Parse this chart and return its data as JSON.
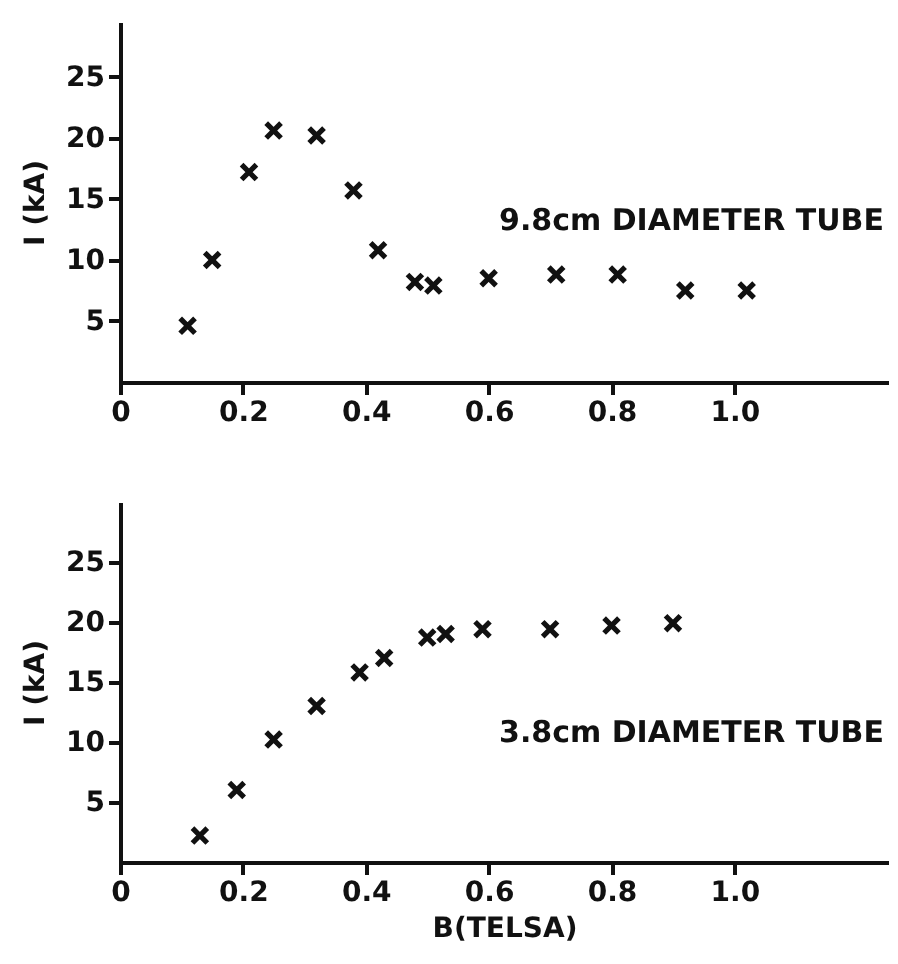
{
  "chart_data": [
    {
      "type": "scatter",
      "x": [
        0.11,
        0.15,
        0.21,
        0.25,
        0.32,
        0.38,
        0.42,
        0.48,
        0.51,
        0.6,
        0.71,
        0.81,
        0.92,
        1.02
      ],
      "values": [
        4.6,
        10,
        17.2,
        20.6,
        20.2,
        15.7,
        10.8,
        8.2,
        7.9,
        8.5,
        8.8,
        8.8,
        7.5,
        7.5
      ],
      "color": "#111111",
      "marker": "cross",
      "ylabel": "I (kA)",
      "xlim": [
        0,
        1.25
      ],
      "xticks": [
        0,
        0.2,
        0.4,
        0.6,
        0.8,
        {
          "value": 1,
          "label": "1.0"
        }
      ],
      "ylim": [
        0,
        29.5
      ],
      "yticks": [
        5,
        10,
        15,
        20,
        25
      ],
      "annotations": [
        "9.8cm DIAMETER TUBE"
      ]
    },
    {
      "type": "scatter",
      "x": [
        0.13,
        0.19,
        0.25,
        0.32,
        0.39,
        0.43,
        0.5,
        0.53,
        0.59,
        0.7,
        0.8,
        0.9
      ],
      "values": [
        2.2,
        6,
        10.2,
        13,
        15.8,
        17,
        18.7,
        19,
        19.4,
        19.4,
        19.7,
        19.9
      ],
      "color": "#111111",
      "marker": "cross",
      "xlabel": "B(TELSA)",
      "ylabel": "I (kA)",
      "xlim": [
        0,
        1.25
      ],
      "xticks": [
        0,
        0.2,
        0.4,
        0.6,
        0.8,
        {
          "value": 1,
          "label": "1.0"
        }
      ],
      "ylim": [
        0,
        30
      ],
      "yticks": [
        5,
        10,
        15,
        20,
        25
      ],
      "annotations": [
        "3.8cm DIAMETER TUBE"
      ]
    }
  ]
}
